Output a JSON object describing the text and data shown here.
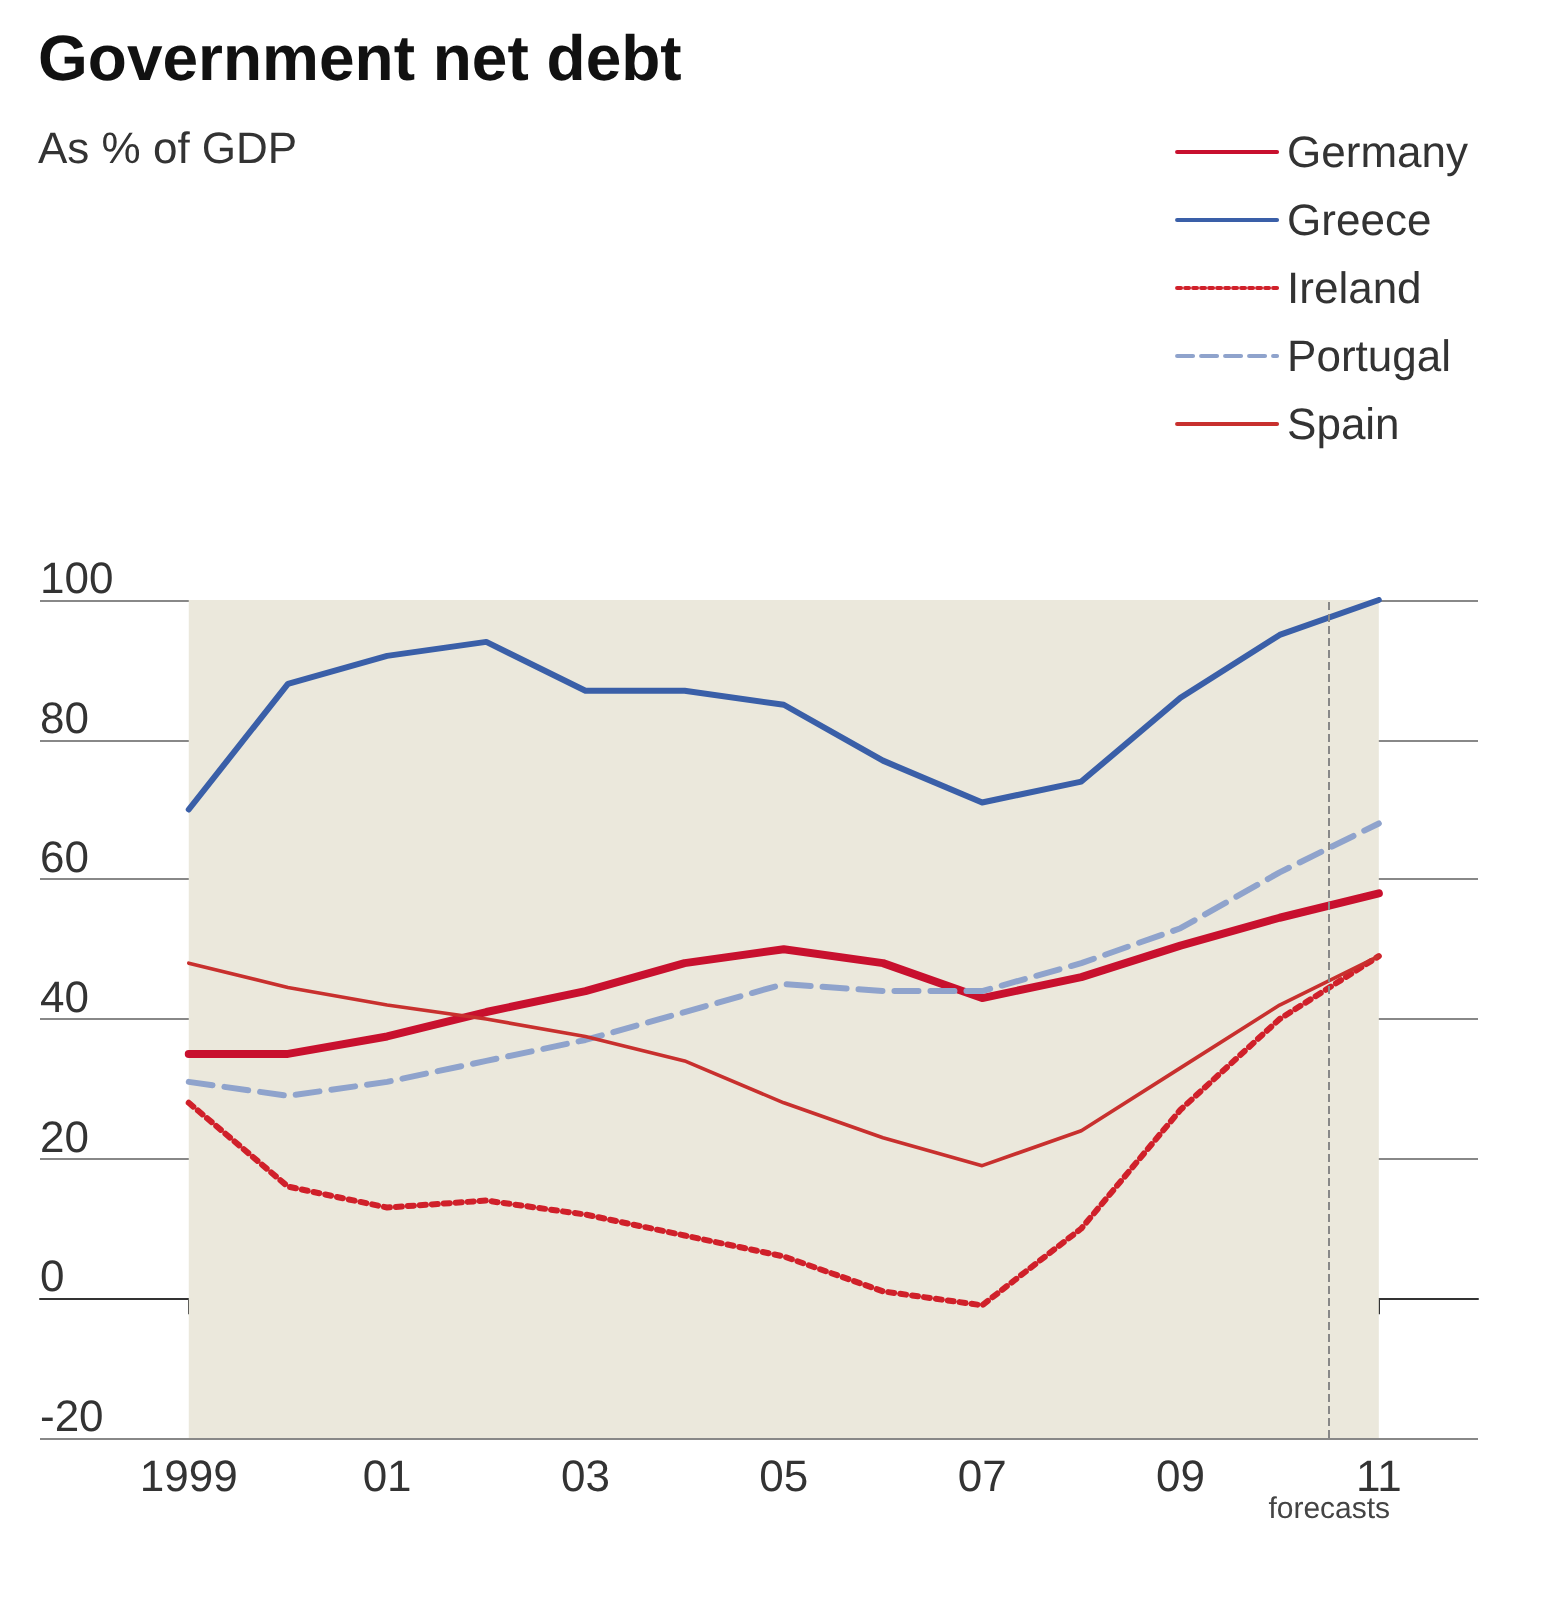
{
  "chart_data": {
    "type": "line",
    "title": "Government net debt",
    "subtitle": "As % of GDP",
    "x": [
      1999,
      2000,
      2001,
      2002,
      2003,
      2004,
      2005,
      2006,
      2007,
      2008,
      2009,
      2010,
      2011
    ],
    "series": [
      {
        "name": "Germany",
        "color": "#c8102e",
        "line_style": "solid",
        "values": [
          35,
          35,
          37.5,
          41,
          44,
          48,
          50,
          48,
          43,
          46,
          50.5,
          54.5,
          58
        ]
      },
      {
        "name": "Greece",
        "color": "#3a5fa8",
        "line_style": "solid",
        "values": [
          70,
          88,
          92,
          94,
          87,
          87,
          85,
          77,
          71,
          74,
          86,
          95,
          100
        ]
      },
      {
        "name": "Ireland",
        "color": "#d0202a",
        "line_style": "dotted",
        "values": [
          28,
          16,
          13,
          14,
          12,
          9,
          6,
          1,
          -1,
          10,
          27,
          40,
          49
        ]
      },
      {
        "name": "Portugal",
        "color": "#8fa3cc",
        "line_style": "dashed",
        "values": [
          31,
          29,
          31,
          34,
          37,
          41,
          45,
          44,
          44,
          48,
          53,
          61,
          68
        ]
      },
      {
        "name": "Spain",
        "color": "#c8302e",
        "line_style": "solid",
        "values": [
          48,
          44.5,
          42,
          40,
          37.5,
          34,
          28,
          23,
          19,
          24,
          33,
          42,
          49
        ]
      }
    ],
    "xlim": [
      1997.5,
      2012
    ],
    "xticks": [
      {
        "value": 1999,
        "label": "1999"
      },
      {
        "value": 2000,
        "label": null
      },
      {
        "value": 2001,
        "label": "01"
      },
      {
        "value": 2002,
        "label": null
      },
      {
        "value": 2003,
        "label": "03"
      },
      {
        "value": 2004,
        "label": null
      },
      {
        "value": 2005,
        "label": "05"
      },
      {
        "value": 2006,
        "label": null
      },
      {
        "value": 2007,
        "label": "07"
      },
      {
        "value": 2008,
        "label": null
      },
      {
        "value": 2009,
        "label": "09"
      },
      {
        "value": 2010,
        "label": null
      },
      {
        "value": 2011,
        "label": "11"
      }
    ],
    "ylim": [
      -20,
      100
    ],
    "yticks": [
      -20,
      0,
      20,
      40,
      60,
      80,
      100
    ],
    "grid": "y",
    "legend": "top right",
    "marker": "none",
    "bands": [
      {
        "axis": "x",
        "from": 1999,
        "to": 2011,
        "color": "#ebe8dc"
      }
    ],
    "ref_lines": [
      {
        "axis": "x",
        "value": 2010.5,
        "label": "forecasts",
        "color": "#888888",
        "line_style": "dashed"
      }
    ]
  }
}
